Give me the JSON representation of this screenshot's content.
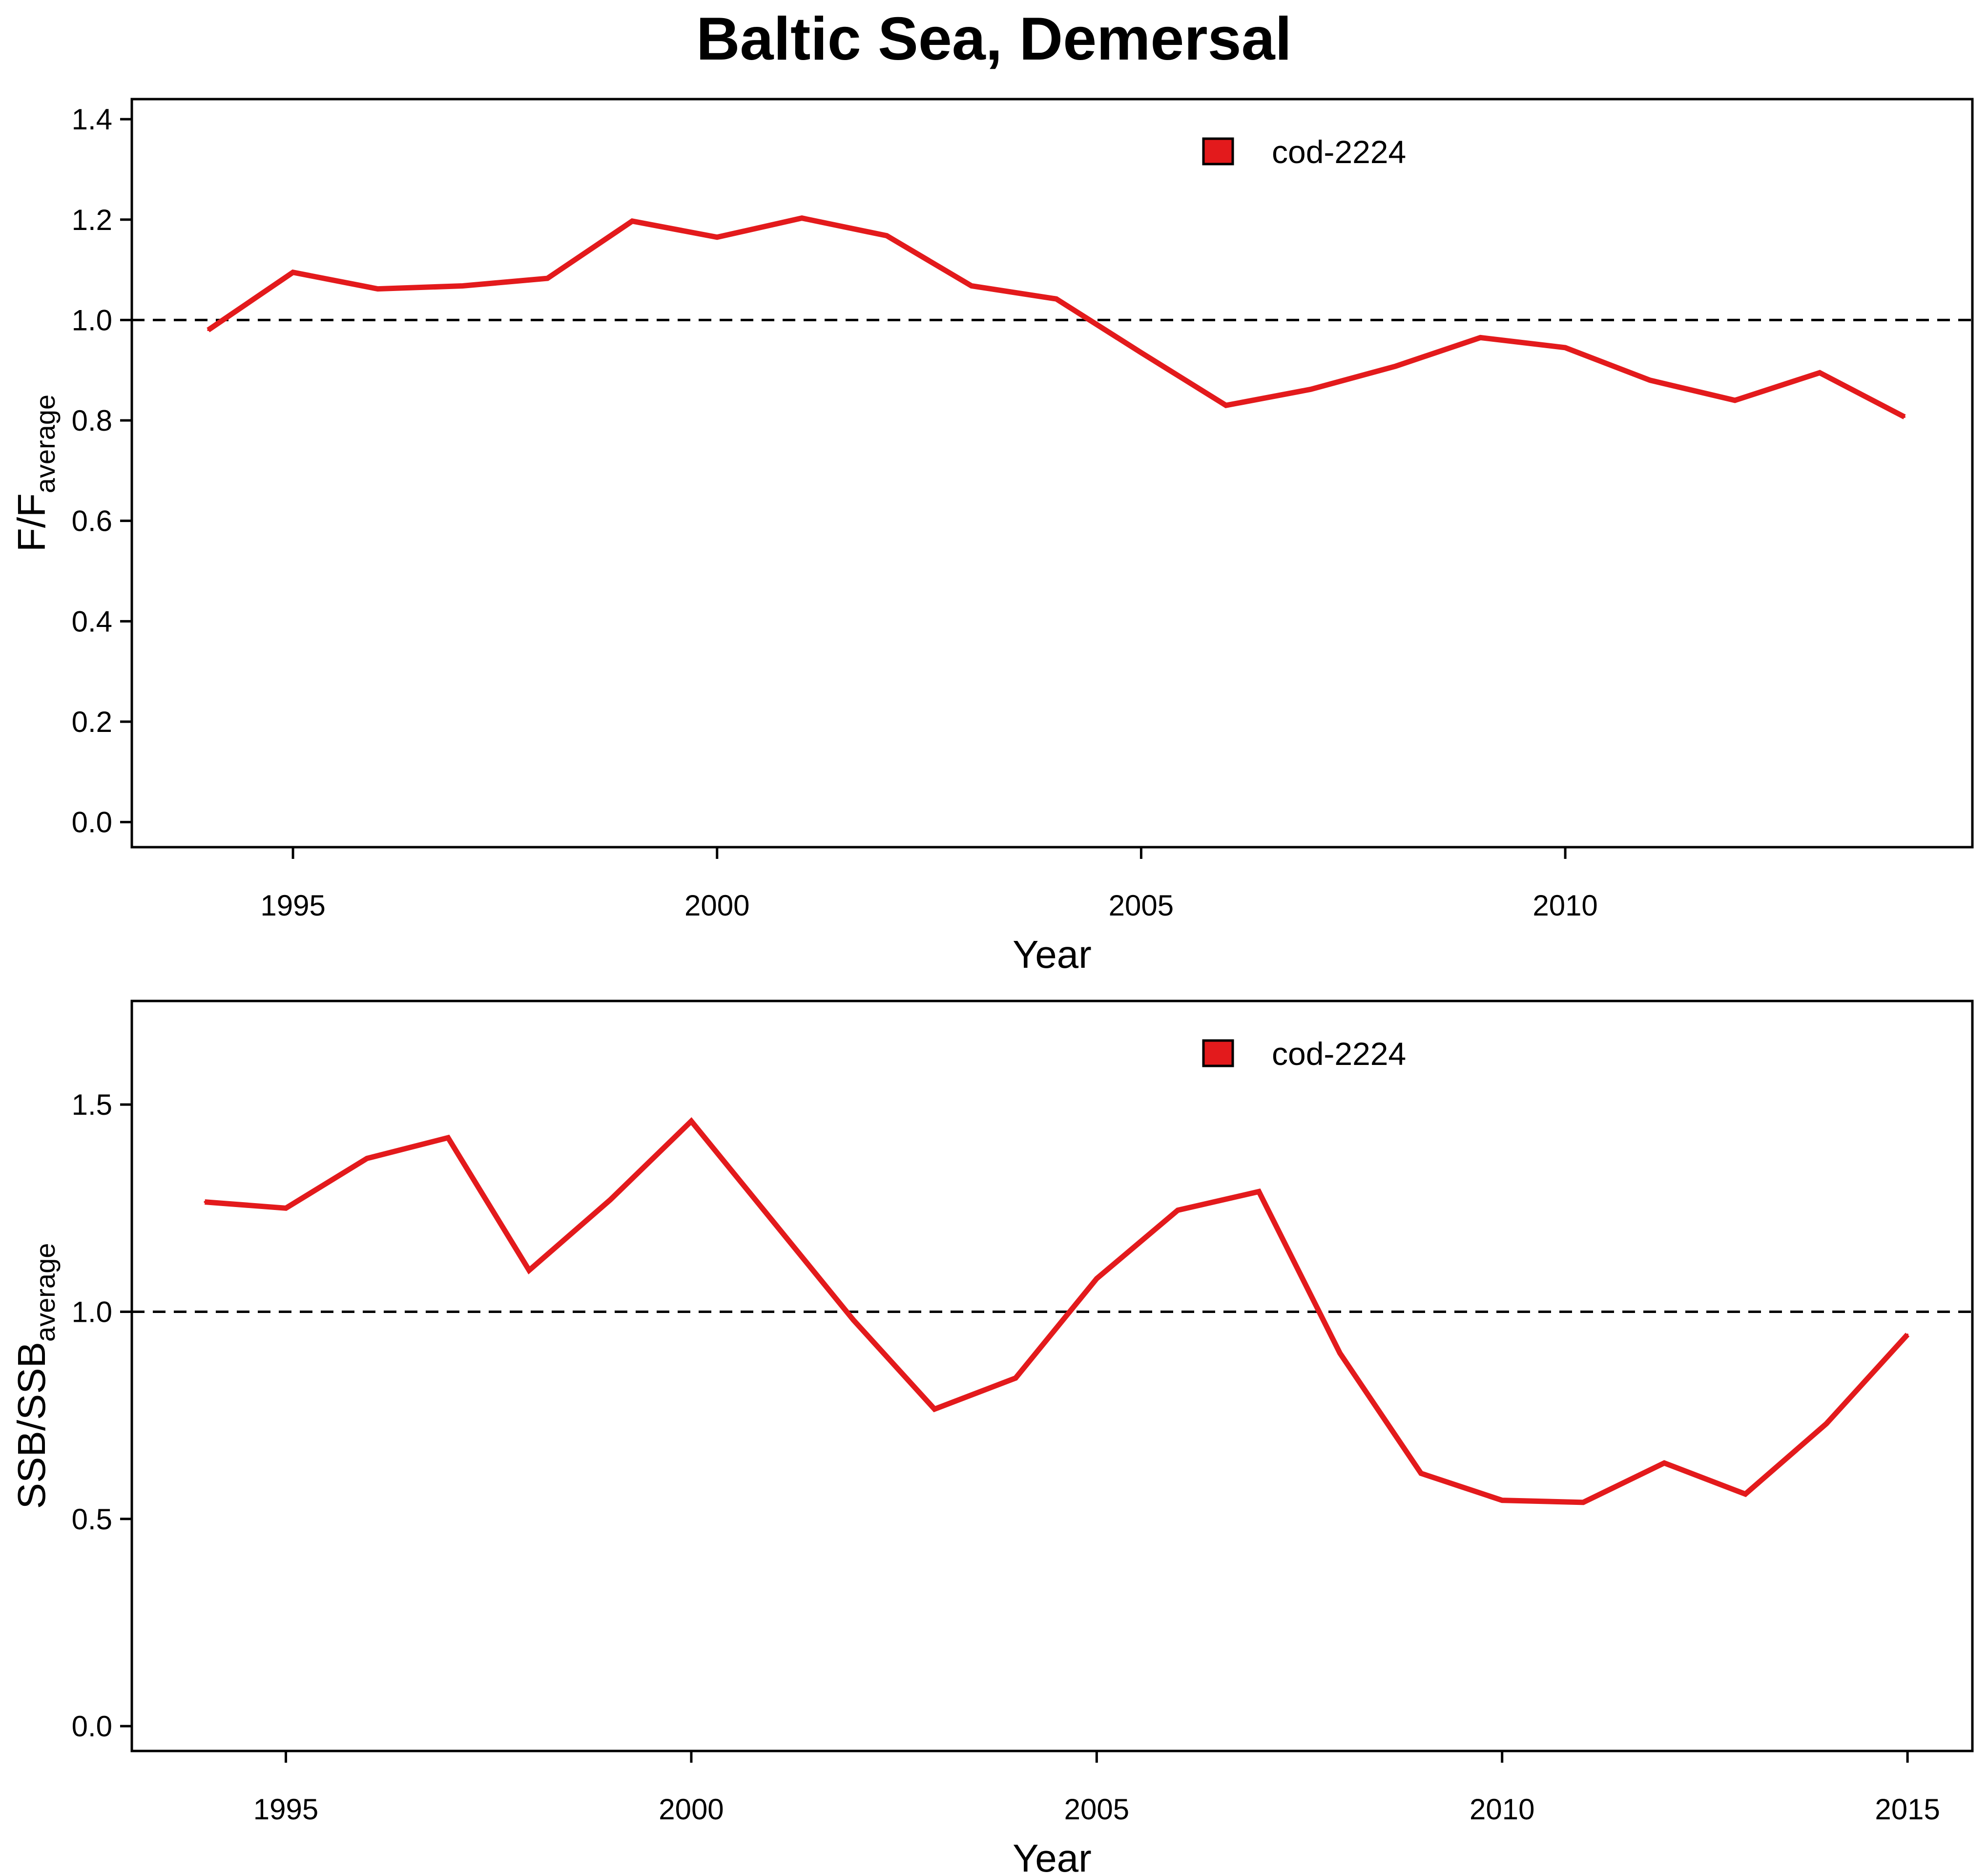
{
  "figure_title": "Baltic Sea, Demersal",
  "colors": {
    "series": "#e31a1c",
    "axis": "#000000",
    "reference": "#000000"
  },
  "chart_data": [
    {
      "type": "line",
      "xlabel": "Year",
      "ylabel_main": "F/F",
      "ylabel_sub": "average",
      "xlim": [
        1993.1,
        2014.8
      ],
      "ylim": [
        -0.05,
        1.44
      ],
      "xticks": [
        "1995",
        "2000",
        "2005",
        "2010"
      ],
      "yticks": [
        "0.0",
        "0.2",
        "0.4",
        "0.6",
        "0.8",
        "1.0",
        "1.2",
        "1.4"
      ],
      "reference_line": 1.0,
      "legend_position": "top-center",
      "series": [
        {
          "name": "cod-2224",
          "x": [
            1994,
            1995,
            1996,
            1997,
            1998,
            1999,
            2000,
            2001,
            2002,
            2003,
            2004,
            2005,
            2006,
            2007,
            2008,
            2009,
            2010,
            2011,
            2012,
            2013,
            2014
          ],
          "values": [
            0.98,
            1.095,
            1.062,
            1.068,
            1.083,
            1.197,
            1.165,
            1.203,
            1.168,
            1.068,
            1.042,
            0.935,
            0.83,
            0.862,
            0.908,
            0.965,
            0.945,
            0.88,
            0.84,
            0.895,
            0.807
          ]
        }
      ]
    },
    {
      "type": "line",
      "xlabel": "Year",
      "ylabel_main": "SSB/SSB",
      "ylabel_sub": "average",
      "xlim": [
        1993.1,
        2015.8
      ],
      "ylim": [
        -0.06,
        1.75
      ],
      "xticks": [
        "1995",
        "2000",
        "2005",
        "2010",
        "2015"
      ],
      "yticks": [
        "0.0",
        "0.5",
        "1.0",
        "1.5"
      ],
      "reference_line": 1.0,
      "legend_position": "top-center",
      "series": [
        {
          "name": "cod-2224",
          "x": [
            1994,
            1995,
            1996,
            1997,
            1998,
            1999,
            2000,
            2001,
            2002,
            2003,
            2004,
            2005,
            2006,
            2007,
            2008,
            2009,
            2010,
            2011,
            2012,
            2013,
            2014,
            2015
          ],
          "values": [
            1.265,
            1.25,
            1.37,
            1.42,
            1.1,
            1.27,
            1.46,
            1.22,
            0.98,
            0.765,
            0.84,
            1.08,
            1.245,
            1.29,
            0.9,
            0.61,
            0.545,
            0.54,
            0.635,
            0.56,
            0.73,
            0.945
          ]
        }
      ]
    }
  ]
}
